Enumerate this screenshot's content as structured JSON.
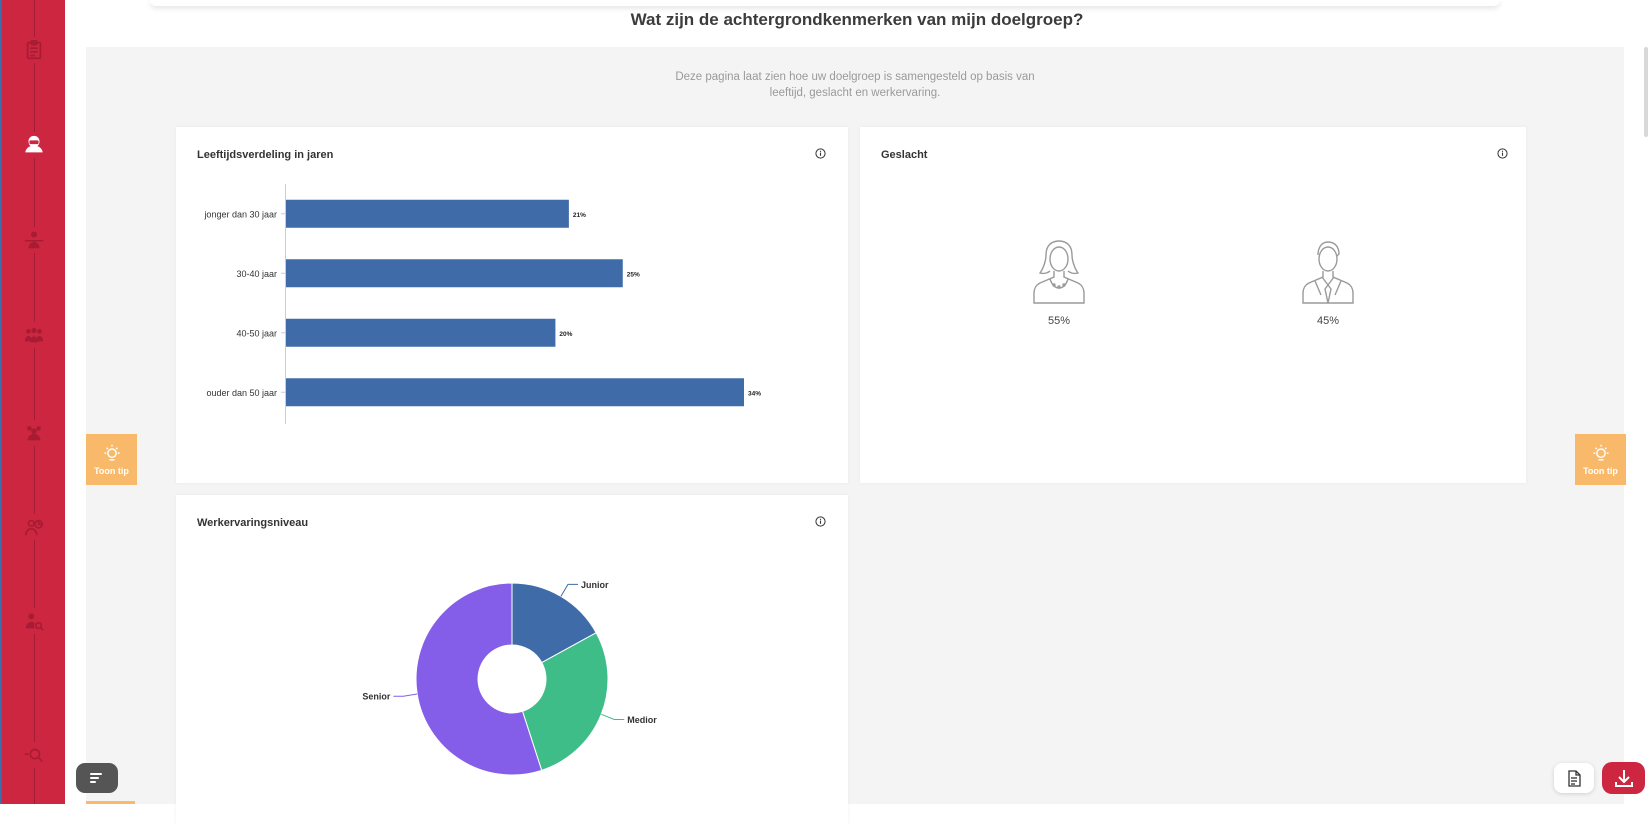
{
  "page": {
    "title": "Wat zijn de achtergrondkenmerken van mijn doelgroep?",
    "intro_line1": "Deze pagina laat zien hoe uw doelgroep is samengesteld op basis van",
    "intro_line2": "leeftijd, geslacht en werkervaring."
  },
  "sidebar": {
    "items": [
      {
        "icon": "clipboard-icon",
        "active": false
      },
      {
        "icon": "person-icon",
        "active": true
      },
      {
        "icon": "balance-person-icon",
        "active": false
      },
      {
        "icon": "group-icon",
        "active": false
      },
      {
        "icon": "team-icon",
        "active": false
      },
      {
        "icon": "person-chart-icon",
        "active": false
      },
      {
        "icon": "person-search-icon",
        "active": false
      },
      {
        "icon": "search-icon",
        "active": false
      }
    ]
  },
  "cards": {
    "age": {
      "title": "Leeftijdsverdeling in jaren"
    },
    "gender": {
      "title": "Geslacht",
      "female_pct": "55%",
      "male_pct": "45%"
    },
    "experience": {
      "title": "Werkervaringsniveau"
    }
  },
  "tip": {
    "label": "Toon tip"
  },
  "colors": {
    "sidebar": "#cc2641",
    "bar": "#3f6ca8",
    "junior": "#3f6ca8",
    "medior": "#3ebd88",
    "senior": "#845ee8",
    "tip": "#f8b96a"
  },
  "chart_data": [
    {
      "type": "bar",
      "orientation": "horizontal",
      "title": "Leeftijdsverdeling in jaren",
      "categories": [
        "jonger dan 30 jaar",
        "30-40 jaar",
        "40-50 jaar",
        "ouder dan 50 jaar"
      ],
      "values": [
        21,
        25,
        20,
        34
      ],
      "value_labels": [
        "21%",
        "25%",
        "20%",
        "34%"
      ],
      "xlim": [
        0,
        34
      ],
      "grid": false
    },
    {
      "type": "pie",
      "subtype": "donut",
      "title": "Werkervaringsniveau",
      "categories": [
        "Junior",
        "Medior",
        "Senior"
      ],
      "values": [
        17,
        28,
        55
      ],
      "grid": false
    }
  ]
}
